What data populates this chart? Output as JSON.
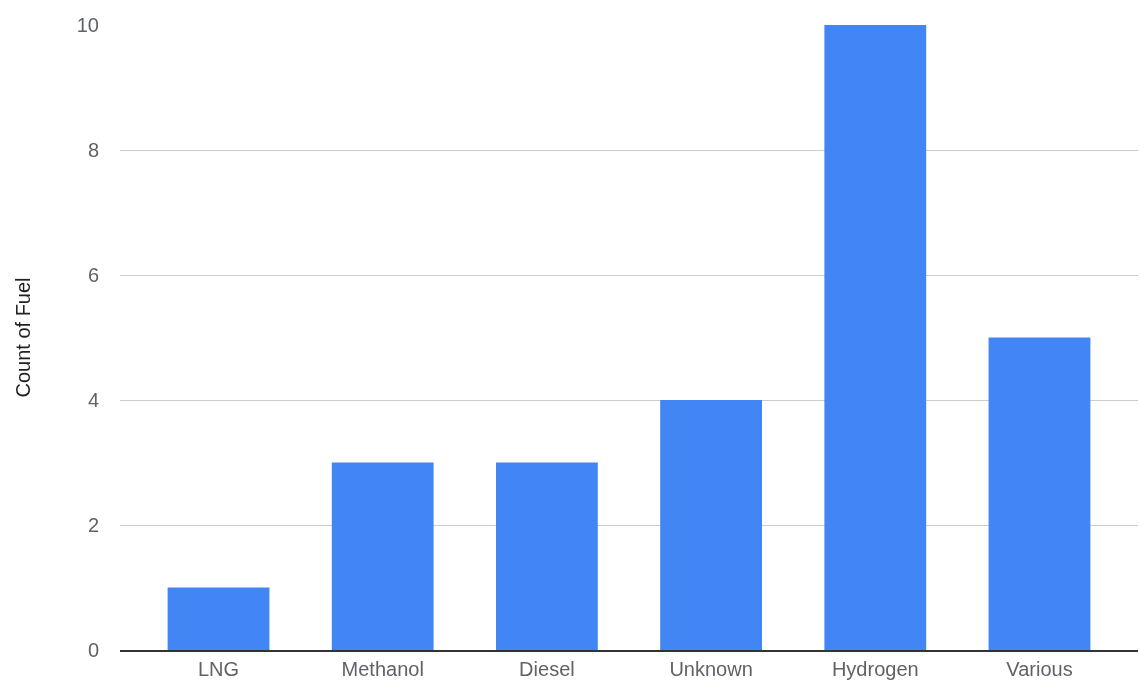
{
  "chart_data": {
    "type": "bar",
    "ylabel": "Count of Fuel",
    "categories": [
      "LNG",
      "Methanol",
      "Diesel",
      "Unknown",
      "Hydrogen",
      "Various"
    ],
    "values": [
      1,
      3,
      3,
      4,
      10,
      5
    ],
    "color": "#4285f4",
    "ylim": [
      0,
      10
    ],
    "yticks": [
      0,
      2,
      4,
      6,
      8,
      10
    ],
    "grid": "y"
  }
}
